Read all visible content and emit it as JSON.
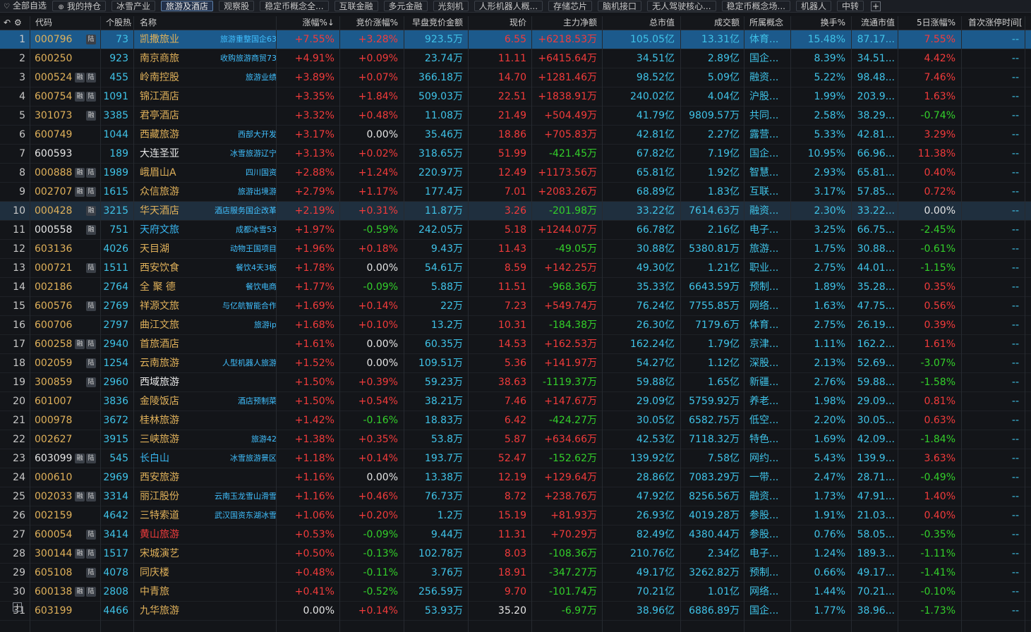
{
  "tabs": [
    {
      "label": "全部自选",
      "icon": "heart-icon",
      "glyph": "♡"
    },
    {
      "label": "我的持仓",
      "icon": "coin-icon",
      "glyph": "⊕"
    },
    {
      "label": "冰雪产业"
    },
    {
      "label": "旅游及酒店",
      "active": true
    },
    {
      "label": "观察股"
    },
    {
      "label": "稳定币概念全..."
    },
    {
      "label": "互联金融"
    },
    {
      "label": "多元金融"
    },
    {
      "label": "光刻机"
    },
    {
      "label": "人形机器人概..."
    },
    {
      "label": "存储芯片"
    },
    {
      "label": "脑机接口"
    },
    {
      "label": "无人驾驶核心..."
    },
    {
      "label": "稳定币概念场..."
    },
    {
      "label": "机器人"
    },
    {
      "label": "中转"
    }
  ],
  "add_tab": "+",
  "header": {
    "back_glyph": "↶",
    "gear_glyph": "⚙",
    "code": "代码",
    "hot": "个股热",
    "name": "名称",
    "chg": "涨幅%↓",
    "bid_chg": "竞价涨幅%",
    "bid_amt": "早盘竞价金额",
    "price": "现价",
    "net": "主力净额",
    "mcap": "总市值",
    "vol": "成交额",
    "concept": "所属概念",
    "turnover": "换手%",
    "float": "流通市值",
    "chg5": "5日涨幅%",
    "first_limit": "首次涨停时间["
  },
  "rows": [
    {
      "idx": "1",
      "code": "000796",
      "codeColor": "y",
      "badges": [
        "陆"
      ],
      "hot": "73",
      "name": "凯撒旅业",
      "nameColor": "y",
      "tag": "旅游重整国企63",
      "chg": "+7.55%",
      "bid": "+3.28%",
      "amt": "923.5万",
      "price": "6.55",
      "net": "+6218.53万",
      "mcap": "105.05亿",
      "vol": "13.31亿",
      "concept": "体育...",
      "turn": "15.48%",
      "float": "87.17...",
      "chg5": "7.55%",
      "first": "--"
    },
    {
      "idx": "2",
      "code": "600250",
      "codeColor": "y",
      "badges": [],
      "hot": "923",
      "name": "南京商旅",
      "nameColor": "y",
      "tag": "收购旅游商贸73",
      "chg": "+4.91%",
      "bid": "+0.09%",
      "amt": "23.74万",
      "price": "11.11",
      "net": "+6415.64万",
      "mcap": "34.51亿",
      "vol": "2.89亿",
      "concept": "国企...",
      "turn": "8.39%",
      "float": "34.51...",
      "chg5": "4.42%",
      "first": "--"
    },
    {
      "idx": "3",
      "code": "000524",
      "codeColor": "y",
      "badges": [
        "融",
        "陆"
      ],
      "hot": "455",
      "name": "岭南控股",
      "nameColor": "y",
      "tag": "旅游业绩",
      "chg": "+3.89%",
      "bid": "+0.07%",
      "amt": "366.18万",
      "price": "14.70",
      "net": "+1281.46万",
      "mcap": "98.52亿",
      "vol": "5.09亿",
      "concept": "融资...",
      "turn": "5.22%",
      "float": "98.48...",
      "chg5": "7.46%",
      "first": "--"
    },
    {
      "idx": "4",
      "code": "600754",
      "codeColor": "y",
      "badges": [
        "融",
        "陆"
      ],
      "hot": "1091",
      "name": "锦江酒店",
      "nameColor": "y",
      "tag": "",
      "chg": "+3.35%",
      "bid": "+1.84%",
      "amt": "509.03万",
      "price": "22.51",
      "net": "+1838.91万",
      "mcap": "240.02亿",
      "vol": "4.04亿",
      "concept": "沪股...",
      "turn": "1.99%",
      "float": "203.9...",
      "chg5": "1.63%",
      "first": "--"
    },
    {
      "idx": "5",
      "code": "301073",
      "codeColor": "y",
      "badges": [
        "融"
      ],
      "hot": "3385",
      "name": "君亭酒店",
      "nameColor": "y",
      "tag": "",
      "chg": "+3.32%",
      "bid": "+0.48%",
      "amt": "11.08万",
      "price": "21.49",
      "net": "+504.49万",
      "mcap": "41.79亿",
      "vol": "9809.57万",
      "concept": "共同...",
      "turn": "2.58%",
      "float": "38.29...",
      "chg5": "-0.74%",
      "first": "--"
    },
    {
      "idx": "6",
      "code": "600749",
      "codeColor": "y",
      "badges": [],
      "hot": "1044",
      "name": "西藏旅游",
      "nameColor": "y",
      "tag": "西部大开发",
      "chg": "+3.17%",
      "bid": "0.00%",
      "amt": "35.46万",
      "price": "18.86",
      "net": "+705.83万",
      "mcap": "42.81亿",
      "vol": "2.27亿",
      "concept": "露营...",
      "turn": "5.33%",
      "float": "42.81...",
      "chg5": "3.29%",
      "first": "--"
    },
    {
      "idx": "7",
      "code": "600593",
      "codeColor": "w",
      "badges": [],
      "hot": "189",
      "name": "大连圣亚",
      "nameColor": "w",
      "tag": "冰雪旅游辽宁",
      "chg": "+3.13%",
      "bid": "+0.02%",
      "amt": "318.65万",
      "price": "51.99",
      "net": "-421.45万",
      "mcap": "67.82亿",
      "vol": "7.19亿",
      "concept": "国企...",
      "turn": "10.95%",
      "float": "66.96...",
      "chg5": "11.38%",
      "first": "--"
    },
    {
      "idx": "8",
      "code": "000888",
      "codeColor": "y",
      "badges": [
        "融",
        "陆"
      ],
      "hot": "1989",
      "name": "峨眉山A",
      "nameColor": "y",
      "tag": "四川国资",
      "chg": "+2.88%",
      "bid": "+1.24%",
      "amt": "220.97万",
      "price": "12.49",
      "net": "+1173.56万",
      "mcap": "65.81亿",
      "vol": "1.92亿",
      "concept": "智慧...",
      "turn": "2.93%",
      "float": "65.81...",
      "chg5": "0.40%",
      "first": "--"
    },
    {
      "idx": "9",
      "code": "002707",
      "codeColor": "y",
      "badges": [
        "融",
        "陆"
      ],
      "hot": "1615",
      "name": "众信旅游",
      "nameColor": "y",
      "tag": "旅游出境游",
      "chg": "+2.79%",
      "bid": "+1.17%",
      "amt": "177.4万",
      "price": "7.01",
      "net": "+2083.26万",
      "mcap": "68.89亿",
      "vol": "1.83亿",
      "concept": "互联...",
      "turn": "3.17%",
      "float": "57.85...",
      "chg5": "0.72%",
      "first": "--"
    },
    {
      "idx": "10",
      "code": "000428",
      "codeColor": "y",
      "badges": [
        "融"
      ],
      "hot": "3215",
      "name": "华天酒店",
      "nameColor": "y",
      "tag": "酒店服务国企改革",
      "chg": "+2.19%",
      "bid": "+0.31%",
      "amt": "11.87万",
      "price": "3.26",
      "net": "-201.98万",
      "mcap": "33.22亿",
      "vol": "7614.63万",
      "concept": "融资...",
      "turn": "2.30%",
      "float": "33.22...",
      "chg5": "0.00%",
      "first": "--"
    },
    {
      "idx": "11",
      "code": "000558",
      "codeColor": "w",
      "badges": [
        "融"
      ],
      "hot": "751",
      "name": "天府文旅",
      "nameColor": "c",
      "tag": "成都冰雪53",
      "chg": "+1.97%",
      "bid": "-0.59%",
      "amt": "242.05万",
      "price": "5.18",
      "net": "+1244.07万",
      "mcap": "66.78亿",
      "vol": "2.16亿",
      "concept": "电子...",
      "turn": "3.25%",
      "float": "66.75...",
      "chg5": "-2.45%",
      "first": "--"
    },
    {
      "idx": "12",
      "code": "603136",
      "codeColor": "y",
      "badges": [],
      "hot": "4026",
      "name": "天目湖",
      "nameColor": "y",
      "tag": "动物王国项目",
      "chg": "+1.96%",
      "bid": "+0.18%",
      "amt": "9.43万",
      "price": "11.43",
      "net": "-49.05万",
      "mcap": "30.88亿",
      "vol": "5380.81万",
      "concept": "旅游...",
      "turn": "1.75%",
      "float": "30.88...",
      "chg5": "-0.61%",
      "first": "--"
    },
    {
      "idx": "13",
      "code": "000721",
      "codeColor": "y",
      "badges": [
        "陆"
      ],
      "hot": "1511",
      "name": "西安饮食",
      "nameColor": "y",
      "tag": "餐饮4天3板",
      "chg": "+1.78%",
      "bid": "0.00%",
      "amt": "54.61万",
      "price": "8.59",
      "net": "+142.25万",
      "mcap": "49.30亿",
      "vol": "1.21亿",
      "concept": "职业...",
      "turn": "2.75%",
      "float": "44.01...",
      "chg5": "-1.15%",
      "first": "--"
    },
    {
      "idx": "14",
      "code": "002186",
      "codeColor": "y",
      "badges": [],
      "hot": "2764",
      "name": "全 聚 德",
      "nameColor": "y",
      "tag": "餐饮电商",
      "chg": "+1.77%",
      "bid": "-0.09%",
      "amt": "5.88万",
      "price": "11.51",
      "net": "-968.36万",
      "mcap": "35.33亿",
      "vol": "6643.59万",
      "concept": "预制...",
      "turn": "1.89%",
      "float": "35.28...",
      "chg5": "0.35%",
      "first": "--"
    },
    {
      "idx": "15",
      "code": "600576",
      "codeColor": "y",
      "badges": [
        "陆"
      ],
      "hot": "2769",
      "name": "祥源文旅",
      "nameColor": "y",
      "tag": "与亿航智能合作",
      "chg": "+1.69%",
      "bid": "+0.14%",
      "amt": "22万",
      "price": "7.23",
      "net": "+549.74万",
      "mcap": "76.24亿",
      "vol": "7755.85万",
      "concept": "网络...",
      "turn": "1.63%",
      "float": "47.75...",
      "chg5": "0.56%",
      "first": "--"
    },
    {
      "idx": "16",
      "code": "600706",
      "codeColor": "y",
      "badges": [],
      "hot": "2797",
      "name": "曲江文旅",
      "nameColor": "y",
      "tag": "旅游ip",
      "chg": "+1.68%",
      "bid": "+0.10%",
      "amt": "13.2万",
      "price": "10.31",
      "net": "-184.38万",
      "mcap": "26.30亿",
      "vol": "7179.6万",
      "concept": "体育...",
      "turn": "2.75%",
      "float": "26.19...",
      "chg5": "0.39%",
      "first": "--"
    },
    {
      "idx": "17",
      "code": "600258",
      "codeColor": "y",
      "badges": [
        "融",
        "陆"
      ],
      "hot": "2940",
      "name": "首旅酒店",
      "nameColor": "y",
      "tag": "",
      "chg": "+1.61%",
      "bid": "0.00%",
      "amt": "60.35万",
      "price": "14.53",
      "net": "+162.53万",
      "mcap": "162.24亿",
      "vol": "1.79亿",
      "concept": "京津...",
      "turn": "1.11%",
      "float": "162.2...",
      "chg5": "1.61%",
      "first": "--"
    },
    {
      "idx": "18",
      "code": "002059",
      "codeColor": "y",
      "badges": [
        "陆"
      ],
      "hot": "1254",
      "name": "云南旅游",
      "nameColor": "y",
      "tag": "人型机器人旅游",
      "chg": "+1.52%",
      "bid": "0.00%",
      "amt": "109.51万",
      "price": "5.36",
      "net": "+141.97万",
      "mcap": "54.27亿",
      "vol": "1.12亿",
      "concept": "深股...",
      "turn": "2.13%",
      "float": "52.69...",
      "chg5": "-3.07%",
      "first": "--"
    },
    {
      "idx": "19",
      "code": "300859",
      "codeColor": "y",
      "badges": [
        "陆"
      ],
      "hot": "2960",
      "name": "西域旅游",
      "nameColor": "w",
      "tag": "",
      "chg": "+1.50%",
      "bid": "+0.39%",
      "amt": "59.23万",
      "price": "38.63",
      "net": "-1119.37万",
      "mcap": "59.88亿",
      "vol": "1.65亿",
      "concept": "新疆...",
      "turn": "2.76%",
      "float": "59.88...",
      "chg5": "-1.58%",
      "first": "--"
    },
    {
      "idx": "20",
      "code": "601007",
      "codeColor": "y",
      "badges": [],
      "hot": "3836",
      "name": "金陵饭店",
      "nameColor": "y",
      "tag": "酒店预制菜",
      "chg": "+1.50%",
      "bid": "+0.54%",
      "amt": "38.21万",
      "price": "7.46",
      "net": "+147.67万",
      "mcap": "29.09亿",
      "vol": "5759.92万",
      "concept": "养老...",
      "turn": "1.98%",
      "float": "29.09...",
      "chg5": "0.81%",
      "first": "--"
    },
    {
      "idx": "21",
      "code": "000978",
      "codeColor": "y",
      "badges": [],
      "hot": "3672",
      "name": "桂林旅游",
      "nameColor": "y",
      "tag": "",
      "chg": "+1.42%",
      "bid": "-0.16%",
      "amt": "18.83万",
      "price": "6.42",
      "net": "-424.27万",
      "mcap": "30.05亿",
      "vol": "6582.75万",
      "concept": "低空...",
      "turn": "2.20%",
      "float": "30.05...",
      "chg5": "0.63%",
      "first": "--"
    },
    {
      "idx": "22",
      "code": "002627",
      "codeColor": "y",
      "badges": [],
      "hot": "3915",
      "name": "三峡旅游",
      "nameColor": "y",
      "tag": "旅游42",
      "chg": "+1.38%",
      "bid": "+0.35%",
      "amt": "53.8万",
      "price": "5.87",
      "net": "+634.66万",
      "mcap": "42.53亿",
      "vol": "7118.32万",
      "concept": "特色...",
      "turn": "1.69%",
      "float": "42.09...",
      "chg5": "-1.84%",
      "first": "--"
    },
    {
      "idx": "23",
      "code": "603099",
      "codeColor": "w",
      "badges": [
        "融",
        "陆"
      ],
      "hot": "545",
      "name": "长白山",
      "nameColor": "c",
      "tag": "冰雪旅游景区",
      "chg": "+1.18%",
      "bid": "+0.14%",
      "amt": "193.7万",
      "price": "52.47",
      "net": "-152.62万",
      "mcap": "139.92亿",
      "vol": "7.58亿",
      "concept": "网约...",
      "turn": "5.43%",
      "float": "139.9...",
      "chg5": "3.63%",
      "first": "--"
    },
    {
      "idx": "24",
      "code": "000610",
      "codeColor": "y",
      "badges": [],
      "hot": "2969",
      "name": "西安旅游",
      "nameColor": "y",
      "tag": "",
      "chg": "+1.16%",
      "bid": "0.00%",
      "amt": "13.38万",
      "price": "12.19",
      "net": "+129.64万",
      "mcap": "28.86亿",
      "vol": "7083.29万",
      "concept": "一带...",
      "turn": "2.47%",
      "float": "28.71...",
      "chg5": "-0.49%",
      "first": "--"
    },
    {
      "idx": "25",
      "code": "002033",
      "codeColor": "y",
      "badges": [
        "融",
        "陆"
      ],
      "hot": "3314",
      "name": "丽江股份",
      "nameColor": "y",
      "tag": "云南玉龙雪山滑雪",
      "chg": "+1.16%",
      "bid": "+0.46%",
      "amt": "76.73万",
      "price": "8.72",
      "net": "+238.76万",
      "mcap": "47.92亿",
      "vol": "8256.56万",
      "concept": "融资...",
      "turn": "1.73%",
      "float": "47.91...",
      "chg5": "1.40%",
      "first": "--"
    },
    {
      "idx": "26",
      "code": "002159",
      "codeColor": "y",
      "badges": [],
      "hot": "4642",
      "name": "三特索道",
      "nameColor": "y",
      "tag": "武汉国资东湖冰雪",
      "chg": "+1.06%",
      "bid": "+0.20%",
      "amt": "1.2万",
      "price": "15.19",
      "net": "+81.93万",
      "mcap": "26.93亿",
      "vol": "4019.28万",
      "concept": "参股...",
      "turn": "1.91%",
      "float": "21.03...",
      "chg5": "0.40%",
      "first": "--"
    },
    {
      "idx": "27",
      "code": "600054",
      "codeColor": "y",
      "badges": [
        "陆"
      ],
      "hot": "3414",
      "name": "黄山旅游",
      "nameColor": "r",
      "tag": "",
      "chg": "+0.53%",
      "bid": "-0.09%",
      "amt": "9.44万",
      "price": "11.31",
      "net": "+70.29万",
      "mcap": "82.49亿",
      "vol": "4380.44万",
      "concept": "参股...",
      "turn": "0.76%",
      "float": "58.05...",
      "chg5": "-0.35%",
      "first": "--"
    },
    {
      "idx": "28",
      "code": "300144",
      "codeColor": "y",
      "badges": [
        "融",
        "陆"
      ],
      "hot": "1517",
      "name": "宋城演艺",
      "nameColor": "y",
      "tag": "",
      "chg": "+0.50%",
      "bid": "-0.13%",
      "amt": "102.78万",
      "price": "8.03",
      "net": "-108.36万",
      "mcap": "210.76亿",
      "vol": "2.34亿",
      "concept": "电子...",
      "turn": "1.24%",
      "float": "189.3...",
      "chg5": "-1.11%",
      "first": "--"
    },
    {
      "idx": "29",
      "code": "605108",
      "codeColor": "y",
      "badges": [
        "陆"
      ],
      "hot": "4078",
      "name": "同庆楼",
      "nameColor": "y",
      "tag": "",
      "chg": "+0.48%",
      "bid": "-0.11%",
      "amt": "3.76万",
      "price": "18.91",
      "net": "-347.27万",
      "mcap": "49.17亿",
      "vol": "3262.82万",
      "concept": "预制...",
      "turn": "0.66%",
      "float": "49.17...",
      "chg5": "-1.41%",
      "first": "--"
    },
    {
      "idx": "30",
      "code": "600138",
      "codeColor": "y",
      "badges": [
        "融",
        "陆"
      ],
      "hot": "2808",
      "name": "中青旅",
      "nameColor": "y",
      "tag": "",
      "chg": "+0.41%",
      "bid": "-0.52%",
      "amt": "256.59万",
      "price": "9.70",
      "net": "-101.74万",
      "mcap": "70.21亿",
      "vol": "1.01亿",
      "concept": "网络...",
      "turn": "1.44%",
      "float": "70.21...",
      "chg5": "-0.10%",
      "first": "--"
    },
    {
      "idx": "31",
      "code": "603199",
      "codeColor": "y",
      "badges": [],
      "hot": "4466",
      "name": "九华旅游",
      "nameColor": "y",
      "tag": "",
      "chg": "0.00%",
      "bid": "+0.14%",
      "amt": "53.93万",
      "price": "35.20",
      "net": "-6.97万",
      "mcap": "38.96亿",
      "vol": "6886.89万",
      "concept": "国企...",
      "turn": "1.77%",
      "float": "38.96...",
      "chg5": "-1.73%",
      "first": "--"
    }
  ],
  "selected_row": 0,
  "highlighted_row": 9,
  "footer_add": "+",
  "colors": {
    "up": "#f23b3b",
    "down": "#33d02a",
    "flat": "#e6e6e6",
    "accent": "#3fc3e8",
    "selected": "#1c5a8c"
  }
}
